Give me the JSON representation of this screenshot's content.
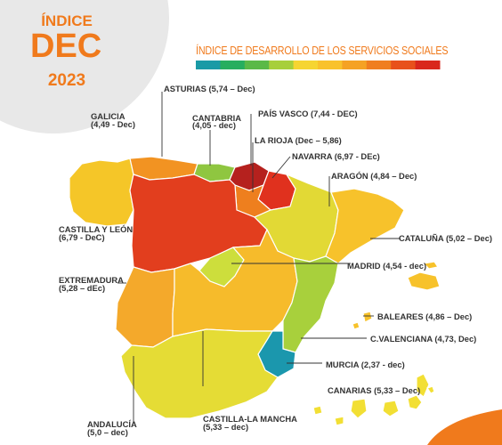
{
  "badge": {
    "line1": "ÍNDICE",
    "line2": "DEC",
    "line3": "2023",
    "color": "#f07a1c",
    "background": "#e8e8e8"
  },
  "legend": {
    "title": "ÍNDICE DE DESARROLLO DE LOS SERVICIOS SOCIALES",
    "color_scale": [
      "#1a9aa6",
      "#27ae5f",
      "#5ab947",
      "#a7cf3c",
      "#f6d532",
      "#f9c22c",
      "#f5a224",
      "#f07e1f",
      "#e8511b",
      "#d9271c"
    ]
  },
  "regions": [
    {
      "id": "galicia",
      "line1": "GALICIA",
      "line2": "(4,49 - Dec)",
      "value": 4.49,
      "color": "#f5c628"
    },
    {
      "id": "asturias",
      "line1": "ASTURIAS (5,74 – Dec)",
      "line2": "",
      "value": 5.74,
      "color": "#f29322"
    },
    {
      "id": "cantabria",
      "line1": "CANTABRIA",
      "line2": "(4,05 - dec)",
      "value": 4.05,
      "color": "#8fc640"
    },
    {
      "id": "pais-vasco",
      "line1": "PAÍS VASCO (7,44 - DEC)",
      "line2": "",
      "value": 7.44,
      "color": "#b5211e"
    },
    {
      "id": "la-rioja",
      "line1": "LA RIOJA (Dec – 5,86)",
      "line2": "",
      "value": 5.86,
      "color": "#ee7f1e"
    },
    {
      "id": "navarra",
      "line1": "NAVARRA (6,97 - DEc)",
      "line2": "",
      "value": 6.97,
      "color": "#e0311e"
    },
    {
      "id": "aragon",
      "line1": "ARAGÓN (4,84 – Dec)",
      "line2": "",
      "value": 4.84,
      "color": "#e2d935"
    },
    {
      "id": "castilla-leon",
      "line1": "CASTILLA Y LEÓN",
      "line2": "(6,79 - DeC)",
      "value": 6.79,
      "color": "#e23e1e"
    },
    {
      "id": "cataluna",
      "line1": "CATALUÑA (5,02 – Dec)",
      "line2": "",
      "value": 5.02,
      "color": "#f7c22b"
    },
    {
      "id": "extremadura",
      "line1": "EXTREMADURA",
      "line2": "(5,28 – dEc)",
      "value": 5.28,
      "color": "#f4a92b"
    },
    {
      "id": "madrid",
      "line1": "MADRID (4,54 - dec)",
      "line2": "",
      "value": 4.54,
      "color": "#cdde3c"
    },
    {
      "id": "baleares",
      "line1": "BALEARES (4,86 – Dec)",
      "line2": "",
      "value": 4.86,
      "color": "#f7c22b"
    },
    {
      "id": "c-valenciana",
      "line1": "C.VALENCIANA (4,73, Dec)",
      "line2": "",
      "value": 4.73,
      "color": "#a8d03c"
    },
    {
      "id": "murcia",
      "line1": "MURCIA (2,37 - dec)",
      "line2": "",
      "value": 2.37,
      "color": "#1b97ad"
    },
    {
      "id": "canarias",
      "line1": "CANARIAS (5,33 – Dec)",
      "line2": "",
      "value": 5.33,
      "color": "#f2df34"
    },
    {
      "id": "andalucia",
      "line1": "ANDALUCÍA",
      "line2": "(5,0 – dec)",
      "value": 5.0,
      "color": "#e5dc35"
    },
    {
      "id": "castilla-la-mancha",
      "line1": "CASTILLA-LA MANCHA",
      "line2": "(5,33 – dec)",
      "value": 5.33,
      "color": "#f6bb2b"
    }
  ]
}
